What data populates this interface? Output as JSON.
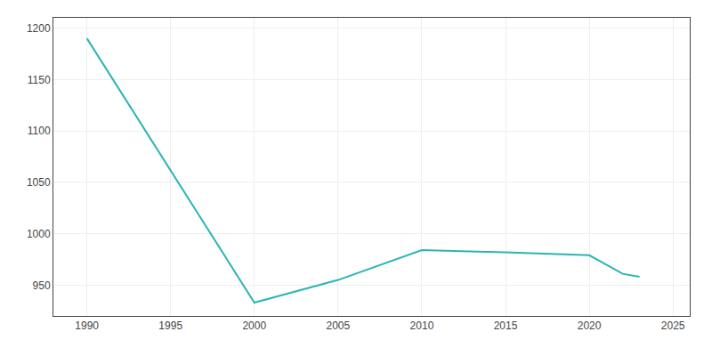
{
  "chart_data": {
    "type": "line",
    "x": [
      1990,
      2000,
      2005,
      2010,
      2015,
      2020,
      2022,
      2023
    ],
    "values": [
      1190,
      933,
      955,
      984,
      982,
      979,
      961,
      958
    ],
    "color": "#2ab5b5",
    "xlim": [
      1988,
      2026
    ],
    "ylim": [
      920,
      1210
    ],
    "xticks": [
      1990,
      1995,
      2000,
      2005,
      2010,
      2015,
      2020,
      2025
    ],
    "yticks": [
      950,
      1000,
      1050,
      1100,
      1150,
      1200
    ],
    "grid": true
  }
}
